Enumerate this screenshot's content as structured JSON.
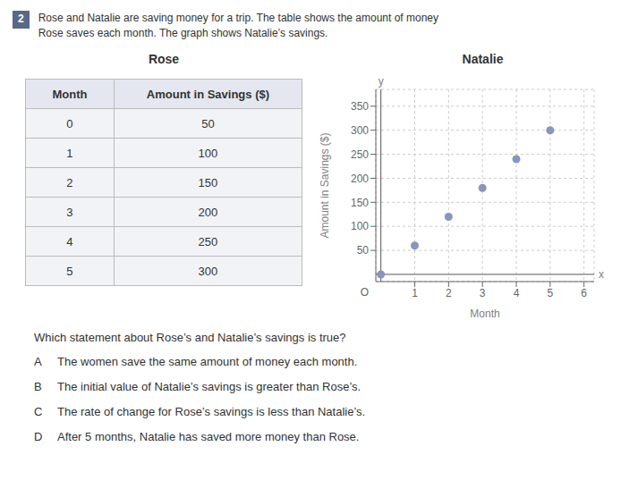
{
  "chart_data": {
    "type": "scatter",
    "title": "Natalie",
    "x_label": "Month",
    "y_label": "Amount in Savings ($)",
    "axis_letters": {
      "x": "x",
      "y": "y",
      "origin": "O"
    },
    "x": [
      0,
      1,
      2,
      3,
      4,
      5
    ],
    "values": [
      0,
      60,
      120,
      180,
      240,
      300
    ],
    "color": "#8896bb",
    "xlim": [
      -0.15,
      6.3
    ],
    "ylim": [
      -15,
      385
    ],
    "xticks": [
      1,
      2,
      3,
      4,
      5,
      6
    ],
    "yticks": [
      50,
      100,
      150,
      200,
      250,
      300,
      350
    ],
    "grid": true,
    "problem_number": "2",
    "intro": [
      "Rose and Natalie are saving money for a trip. The table shows the amount of money",
      "Rose saves each month. The graph shows Natalie’s savings."
    ],
    "table": {
      "title": "Rose",
      "headers": [
        "Month",
        "Amount in Savings ($)"
      ],
      "rows": [
        [
          0,
          50
        ],
        [
          1,
          100
        ],
        [
          2,
          150
        ],
        [
          3,
          200
        ],
        [
          4,
          250
        ],
        [
          5,
          300
        ]
      ]
    },
    "question": "Which statement about Rose’s and Natalie’s savings is true?",
    "choices": [
      {
        "letter": "A",
        "text": "The women save the same amount of money each month."
      },
      {
        "letter": "B",
        "text": "The initial value of Natalie’s savings is greater than Rose’s."
      },
      {
        "letter": "C",
        "text": "The rate of change for Rose’s savings is less than Natalie’s."
      },
      {
        "letter": "D",
        "text": "After 5 months, Natalie has saved more money than Rose."
      }
    ]
  }
}
